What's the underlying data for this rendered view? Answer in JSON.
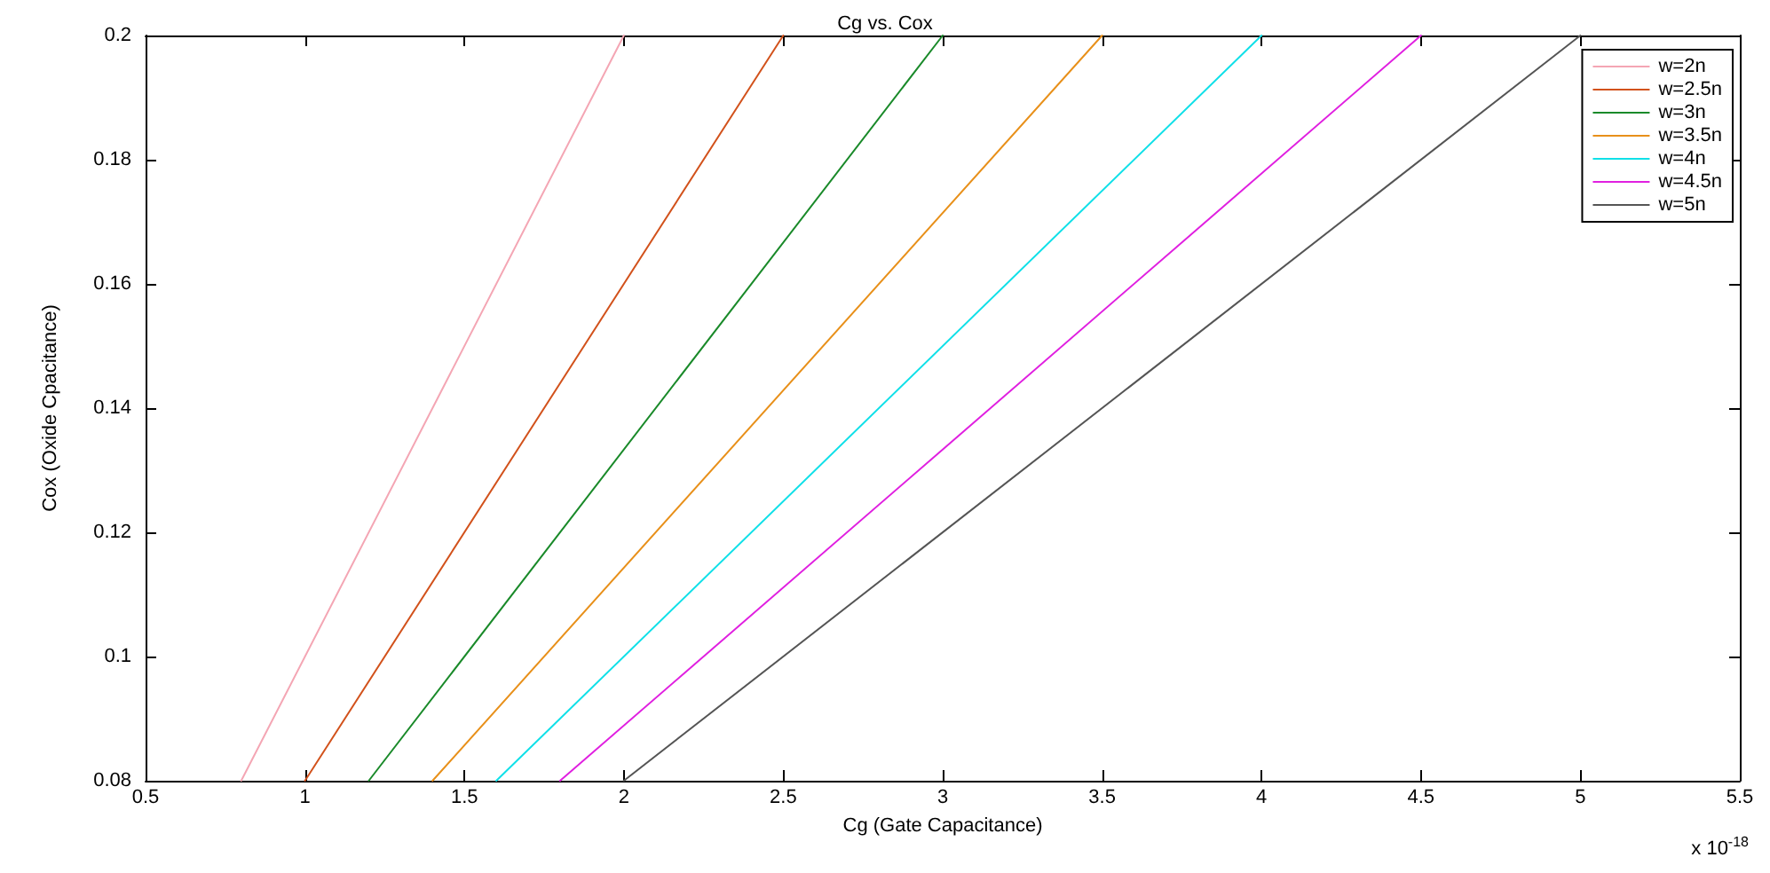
{
  "chart_data": {
    "type": "line",
    "title": "Cg vs. Cox",
    "xlabel": "Cg (Gate Capacitance)",
    "ylabel": "Cox (Oxide Cpacitance)",
    "annotations": [
      "x 10$^{-18}$"
    ],
    "series": [
      {
        "name": "w=2n",
        "color": "#f4a6b4",
        "x": [
          0.8,
          2.0
        ],
        "values": [
          0.08,
          0.2
        ]
      },
      {
        "name": "w=2.5n",
        "color": "#d2521c",
        "x": [
          1.0,
          2.5
        ],
        "values": [
          0.08,
          0.2
        ]
      },
      {
        "name": "w=3n",
        "color": "#1a8a2a",
        "x": [
          1.2,
          3.0
        ],
        "values": [
          0.08,
          0.2
        ]
      },
      {
        "name": "w=3.5n",
        "color": "#e8901a",
        "x": [
          1.4,
          3.5
        ],
        "values": [
          0.08,
          0.2
        ]
      },
      {
        "name": "w=4n",
        "color": "#10e0e8",
        "x": [
          1.6,
          4.0
        ],
        "values": [
          0.08,
          0.2
        ]
      },
      {
        "name": "w=4.5n",
        "color": "#e020e0",
        "x": [
          1.8,
          4.5
        ],
        "values": [
          0.08,
          0.2
        ]
      },
      {
        "name": "w=5n",
        "color": "#555555",
        "x": [
          2.0,
          5.0
        ],
        "values": [
          0.08,
          0.2
        ]
      }
    ],
    "xlim": [
      0.5,
      5.5
    ],
    "xticks": [
      0.5,
      1,
      1.5,
      2,
      2.5,
      3,
      3.5,
      4,
      4.5,
      5,
      5.5
    ],
    "ylim": [
      0.08,
      0.2
    ],
    "yticks": [
      0.08,
      0.1,
      0.12,
      0.14,
      0.16,
      0.18,
      0.2
    ],
    "grid": false,
    "legend": "top right",
    "marker": "none",
    "line_style": "solid"
  }
}
